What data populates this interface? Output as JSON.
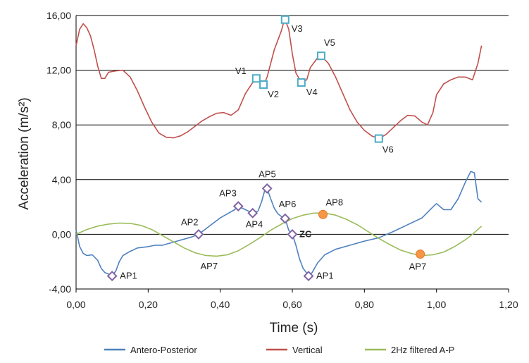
{
  "chart_data": {
    "type": "line",
    "title": "",
    "xlabel": "Time (s)",
    "ylabel": "Acceleration (m/s²)",
    "xlim": [
      0,
      1.2
    ],
    "ylim": [
      -4,
      16
    ],
    "x_ticks": [
      0,
      0.2,
      0.4,
      0.6,
      0.8,
      1.0,
      1.2
    ],
    "x_tick_labels": [
      "0,00",
      "0,20",
      "0,40",
      "0,60",
      "0,80",
      "1,00",
      "1,20"
    ],
    "y_ticks": [
      -4,
      0,
      4,
      8,
      12,
      16
    ],
    "y_tick_labels": [
      "-4,00",
      "0,00",
      "4,00",
      "8,00",
      "12,00",
      "16,00"
    ],
    "horizontal_grid": true,
    "legend_position": "bottom",
    "series": [
      {
        "name": "Antero-Posterior",
        "color": "#4f81bd",
        "points": [
          [
            0,
            0.3
          ],
          [
            0.005,
            -0.3
          ],
          [
            0.01,
            -0.9
          ],
          [
            0.02,
            -1.4
          ],
          [
            0.03,
            -1.55
          ],
          [
            0.045,
            -1.5
          ],
          [
            0.06,
            -1.9
          ],
          [
            0.07,
            -2.5
          ],
          [
            0.08,
            -2.8
          ],
          [
            0.09,
            -2.9
          ],
          [
            0.1,
            -3.0
          ],
          [
            0.11,
            -2.7
          ],
          [
            0.12,
            -2.0
          ],
          [
            0.13,
            -1.55
          ],
          [
            0.15,
            -1.25
          ],
          [
            0.17,
            -1.0
          ],
          [
            0.2,
            -0.9
          ],
          [
            0.22,
            -0.8
          ],
          [
            0.24,
            -0.8
          ],
          [
            0.26,
            -0.65
          ],
          [
            0.28,
            -0.5
          ],
          [
            0.3,
            -0.35
          ],
          [
            0.32,
            -0.2
          ],
          [
            0.34,
            0
          ],
          [
            0.36,
            0.4
          ],
          [
            0.38,
            0.8
          ],
          [
            0.4,
            1.2
          ],
          [
            0.42,
            1.5
          ],
          [
            0.44,
            1.8
          ],
          [
            0.45,
            2.05
          ],
          [
            0.47,
            1.8
          ],
          [
            0.49,
            1.55
          ],
          [
            0.505,
            1.7
          ],
          [
            0.515,
            2.4
          ],
          [
            0.525,
            3.35
          ],
          [
            0.53,
            3.35
          ],
          [
            0.54,
            2.6
          ],
          [
            0.55,
            1.9
          ],
          [
            0.56,
            1.5
          ],
          [
            0.57,
            1.3
          ],
          [
            0.58,
            1.15
          ],
          [
            0.59,
            0.3
          ],
          [
            0.6,
            0
          ],
          [
            0.61,
            -0.8
          ],
          [
            0.62,
            -1.8
          ],
          [
            0.63,
            -2.5
          ],
          [
            0.645,
            -3.0
          ],
          [
            0.655,
            -2.8
          ],
          [
            0.67,
            -2.1
          ],
          [
            0.69,
            -1.5
          ],
          [
            0.72,
            -1.1
          ],
          [
            0.76,
            -0.8
          ],
          [
            0.8,
            -0.5
          ],
          [
            0.84,
            -0.25
          ],
          [
            0.88,
            0.2
          ],
          [
            0.92,
            0.7
          ],
          [
            0.96,
            1.2
          ],
          [
            0.99,
            2.0
          ],
          [
            1.0,
            2.25
          ],
          [
            1.02,
            1.8
          ],
          [
            1.04,
            1.8
          ],
          [
            1.06,
            2.6
          ],
          [
            1.08,
            3.8
          ],
          [
            1.095,
            4.6
          ],
          [
            1.105,
            4.5
          ],
          [
            1.115,
            2.6
          ],
          [
            1.125,
            2.35
          ]
        ]
      },
      {
        "name": "Vertical",
        "color": "#c0504d",
        "points": [
          [
            0,
            13.8
          ],
          [
            0.01,
            15.0
          ],
          [
            0.02,
            15.4
          ],
          [
            0.03,
            15.1
          ],
          [
            0.04,
            14.5
          ],
          [
            0.05,
            13.5
          ],
          [
            0.06,
            12.3
          ],
          [
            0.07,
            11.4
          ],
          [
            0.08,
            11.4
          ],
          [
            0.09,
            11.85
          ],
          [
            0.11,
            11.95
          ],
          [
            0.13,
            12.0
          ],
          [
            0.15,
            11.5
          ],
          [
            0.17,
            10.5
          ],
          [
            0.19,
            9.3
          ],
          [
            0.21,
            8.2
          ],
          [
            0.23,
            7.4
          ],
          [
            0.25,
            7.1
          ],
          [
            0.27,
            7.05
          ],
          [
            0.29,
            7.2
          ],
          [
            0.31,
            7.5
          ],
          [
            0.33,
            7.9
          ],
          [
            0.35,
            8.3
          ],
          [
            0.37,
            8.6
          ],
          [
            0.39,
            8.85
          ],
          [
            0.41,
            8.9
          ],
          [
            0.43,
            8.7
          ],
          [
            0.45,
            9.1
          ],
          [
            0.47,
            10.3
          ],
          [
            0.49,
            11.1
          ],
          [
            0.5,
            11.4
          ],
          [
            0.51,
            11.2
          ],
          [
            0.52,
            10.9
          ],
          [
            0.53,
            11.5
          ],
          [
            0.55,
            13.5
          ],
          [
            0.57,
            14.9
          ],
          [
            0.575,
            15.4
          ],
          [
            0.58,
            15.7
          ],
          [
            0.59,
            15.0
          ],
          [
            0.6,
            13.2
          ],
          [
            0.61,
            11.8
          ],
          [
            0.625,
            11.1
          ],
          [
            0.64,
            11.3
          ],
          [
            0.65,
            12.2
          ],
          [
            0.67,
            12.9
          ],
          [
            0.68,
            13.05
          ],
          [
            0.7,
            12.5
          ],
          [
            0.72,
            11.5
          ],
          [
            0.74,
            10.3
          ],
          [
            0.76,
            9.1
          ],
          [
            0.78,
            8.2
          ],
          [
            0.8,
            7.6
          ],
          [
            0.82,
            7.2
          ],
          [
            0.84,
            7.0
          ],
          [
            0.86,
            7.3
          ],
          [
            0.88,
            7.8
          ],
          [
            0.9,
            8.3
          ],
          [
            0.92,
            8.7
          ],
          [
            0.94,
            8.65
          ],
          [
            0.96,
            8.2
          ],
          [
            0.975,
            8.0
          ],
          [
            0.99,
            8.9
          ],
          [
            1.0,
            10.2
          ],
          [
            1.02,
            11.0
          ],
          [
            1.04,
            11.3
          ],
          [
            1.06,
            11.5
          ],
          [
            1.08,
            11.5
          ],
          [
            1.1,
            11.3
          ],
          [
            1.115,
            12.5
          ],
          [
            1.125,
            13.8
          ]
        ]
      },
      {
        "name": "2Hz filtered A-P",
        "color": "#9bbb59",
        "points": [
          [
            0,
            0
          ],
          [
            0.03,
            0.35
          ],
          [
            0.06,
            0.6
          ],
          [
            0.09,
            0.75
          ],
          [
            0.12,
            0.82
          ],
          [
            0.15,
            0.8
          ],
          [
            0.18,
            0.65
          ],
          [
            0.21,
            0.35
          ],
          [
            0.24,
            -0.1
          ],
          [
            0.27,
            -0.55
          ],
          [
            0.3,
            -1.0
          ],
          [
            0.33,
            -1.35
          ],
          [
            0.36,
            -1.55
          ],
          [
            0.39,
            -1.6
          ],
          [
            0.42,
            -1.5
          ],
          [
            0.45,
            -1.2
          ],
          [
            0.48,
            -0.75
          ],
          [
            0.51,
            -0.25
          ],
          [
            0.54,
            0.3
          ],
          [
            0.57,
            0.75
          ],
          [
            0.6,
            1.15
          ],
          [
            0.63,
            1.4
          ],
          [
            0.66,
            1.55
          ],
          [
            0.69,
            1.55
          ],
          [
            0.72,
            1.4
          ],
          [
            0.75,
            1.1
          ],
          [
            0.78,
            0.7
          ],
          [
            0.81,
            0.2
          ],
          [
            0.84,
            -0.3
          ],
          [
            0.87,
            -0.75
          ],
          [
            0.9,
            -1.15
          ],
          [
            0.93,
            -1.4
          ],
          [
            0.96,
            -1.55
          ],
          [
            0.99,
            -1.5
          ],
          [
            1.02,
            -1.3
          ],
          [
            1.05,
            -0.9
          ],
          [
            1.08,
            -0.4
          ],
          [
            1.1,
            0
          ],
          [
            1.125,
            0.6
          ]
        ]
      }
    ],
    "markers": [
      {
        "label": "V1",
        "x": 0.5,
        "y": 11.4,
        "shape": "square",
        "dx": -30,
        "dy": -6
      },
      {
        "label": "V2",
        "x": 0.52,
        "y": 10.95,
        "shape": "square",
        "dx": 6,
        "dy": 18
      },
      {
        "label": "V3",
        "x": 0.58,
        "y": 15.7,
        "shape": "square",
        "dx": 9,
        "dy": 17
      },
      {
        "label": "V4",
        "x": 0.625,
        "y": 11.1,
        "shape": "square",
        "dx": 7,
        "dy": 18
      },
      {
        "label": "V5",
        "x": 0.68,
        "y": 13.05,
        "shape": "square",
        "dx": 4,
        "dy": -14
      },
      {
        "label": "V6",
        "x": 0.84,
        "y": 7.0,
        "shape": "square",
        "dx": 5,
        "dy": 20
      },
      {
        "label": "AP1",
        "x": 0.1,
        "y": -3.05,
        "shape": "diamond",
        "dx": 11,
        "dy": 4
      },
      {
        "label": "AP2",
        "x": 0.34,
        "y": 0.0,
        "shape": "diamond",
        "dx": -25,
        "dy": -13
      },
      {
        "label": "AP3",
        "x": 0.45,
        "y": 2.05,
        "shape": "diamond",
        "dx": -27,
        "dy": -14
      },
      {
        "label": "AP4",
        "x": 0.49,
        "y": 1.55,
        "shape": "diamond",
        "dx": -10,
        "dy": 20
      },
      {
        "label": "AP5",
        "x": 0.53,
        "y": 3.35,
        "shape": "diamond",
        "dx": -12,
        "dy": -16
      },
      {
        "label": "AP6",
        "x": 0.58,
        "y": 1.15,
        "shape": "diamond",
        "dx": -9,
        "dy": -16
      },
      {
        "label": "AP1",
        "x": 0.645,
        "y": -3.05,
        "shape": "diamond",
        "dx": 11,
        "dy": 4
      },
      {
        "label": "ZC",
        "x": 0.6,
        "y": 0.0,
        "shape": "diamond",
        "dx": 10,
        "dy": 4,
        "bold": true
      },
      {
        "label": "AP8",
        "x": 0.685,
        "y": 1.45,
        "shape": "circle",
        "dx": 4,
        "dy": -13
      },
      {
        "label": "AP7",
        "x": 0.955,
        "y": -1.45,
        "shape": "circle",
        "dx": -16,
        "dy": 22
      }
    ],
    "annotations": [
      {
        "label": "AP7",
        "x": 0.345,
        "y": -2.55
      }
    ]
  }
}
